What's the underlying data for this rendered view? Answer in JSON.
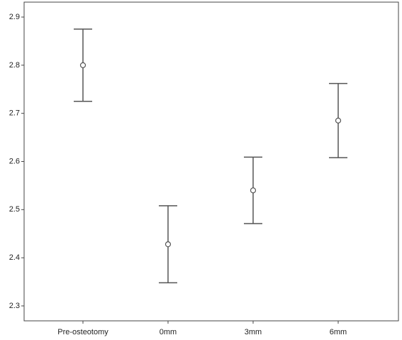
{
  "chart_data": {
    "type": "errorbar",
    "categories": [
      "Pre-osteotomy",
      "0mm",
      "3mm",
      "6mm"
    ],
    "values": [
      2.8,
      2.428,
      2.54,
      2.685
    ],
    "errors": [
      0.075,
      0.08,
      0.069,
      0.077
    ],
    "color": "#555555",
    "ylim": [
      2.269,
      2.931
    ],
    "yticks": [
      2.3,
      2.4,
      2.5,
      2.6,
      2.7,
      2.8,
      2.9
    ],
    "grid": false
  }
}
